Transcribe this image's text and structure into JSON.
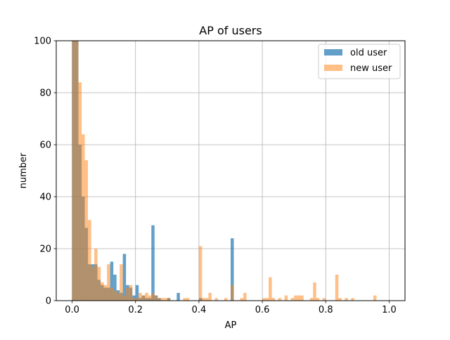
{
  "chart_data": {
    "type": "bar",
    "title": "AP of users",
    "xlabel": "AP",
    "ylabel": "number",
    "xlim": [
      -0.05,
      1.05
    ],
    "ylim": [
      0,
      100
    ],
    "x_ticks": [
      "0.0",
      "0.2",
      "0.4",
      "0.6",
      "0.8",
      "1.0"
    ],
    "y_ticks": [
      "0",
      "20",
      "40",
      "60",
      "80",
      "100"
    ],
    "grid": true,
    "legend_position": "top-right",
    "bin_width": 0.01,
    "series": [
      {
        "name": "old user",
        "color": "#1f77b4",
        "bins": [
          [
            0.0,
            100
          ],
          [
            0.01,
            100
          ],
          [
            0.02,
            60
          ],
          [
            0.03,
            40
          ],
          [
            0.04,
            28
          ],
          [
            0.05,
            14
          ],
          [
            0.06,
            14
          ],
          [
            0.07,
            14
          ],
          [
            0.08,
            8
          ],
          [
            0.09,
            6
          ],
          [
            0.1,
            5
          ],
          [
            0.11,
            5
          ],
          [
            0.12,
            15
          ],
          [
            0.13,
            10
          ],
          [
            0.14,
            4
          ],
          [
            0.15,
            3
          ],
          [
            0.16,
            18
          ],
          [
            0.17,
            6
          ],
          [
            0.18,
            5
          ],
          [
            0.19,
            2
          ],
          [
            0.2,
            6
          ],
          [
            0.21,
            1
          ],
          [
            0.22,
            2
          ],
          [
            0.23,
            1
          ],
          [
            0.24,
            1
          ],
          [
            0.25,
            29
          ],
          [
            0.26,
            2
          ],
          [
            0.27,
            1
          ],
          [
            0.3,
            1
          ],
          [
            0.33,
            3
          ],
          [
            0.4,
            1
          ],
          [
            0.5,
            24
          ]
        ]
      },
      {
        "name": "new user",
        "color": "#ff7f0e",
        "bins": [
          [
            0.0,
            100
          ],
          [
            0.01,
            100
          ],
          [
            0.02,
            84
          ],
          [
            0.03,
            64
          ],
          [
            0.04,
            54
          ],
          [
            0.05,
            31
          ],
          [
            0.06,
            13
          ],
          [
            0.07,
            20
          ],
          [
            0.08,
            13
          ],
          [
            0.09,
            7
          ],
          [
            0.1,
            6
          ],
          [
            0.11,
            14
          ],
          [
            0.12,
            5
          ],
          [
            0.13,
            4
          ],
          [
            0.14,
            3
          ],
          [
            0.15,
            14
          ],
          [
            0.16,
            2
          ],
          [
            0.17,
            5
          ],
          [
            0.18,
            6
          ],
          [
            0.19,
            1
          ],
          [
            0.2,
            1
          ],
          [
            0.21,
            3
          ],
          [
            0.22,
            2
          ],
          [
            0.23,
            3
          ],
          [
            0.24,
            2
          ],
          [
            0.25,
            3
          ],
          [
            0.26,
            2
          ],
          [
            0.27,
            1
          ],
          [
            0.28,
            1
          ],
          [
            0.29,
            1
          ],
          [
            0.3,
            1
          ],
          [
            0.35,
            1
          ],
          [
            0.36,
            1
          ],
          [
            0.4,
            21
          ],
          [
            0.41,
            1
          ],
          [
            0.42,
            1
          ],
          [
            0.43,
            3
          ],
          [
            0.45,
            1
          ],
          [
            0.48,
            1
          ],
          [
            0.5,
            6
          ],
          [
            0.53,
            1
          ],
          [
            0.54,
            3
          ],
          [
            0.6,
            1
          ],
          [
            0.61,
            1
          ],
          [
            0.62,
            9
          ],
          [
            0.63,
            1
          ],
          [
            0.65,
            1
          ],
          [
            0.67,
            2
          ],
          [
            0.69,
            1
          ],
          [
            0.7,
            2
          ],
          [
            0.71,
            2
          ],
          [
            0.72,
            2
          ],
          [
            0.75,
            1
          ],
          [
            0.76,
            7
          ],
          [
            0.77,
            1
          ],
          [
            0.79,
            1
          ],
          [
            0.83,
            10
          ],
          [
            0.84,
            1
          ],
          [
            0.86,
            1
          ],
          [
            0.88,
            1
          ],
          [
            0.95,
            2
          ]
        ]
      }
    ]
  }
}
